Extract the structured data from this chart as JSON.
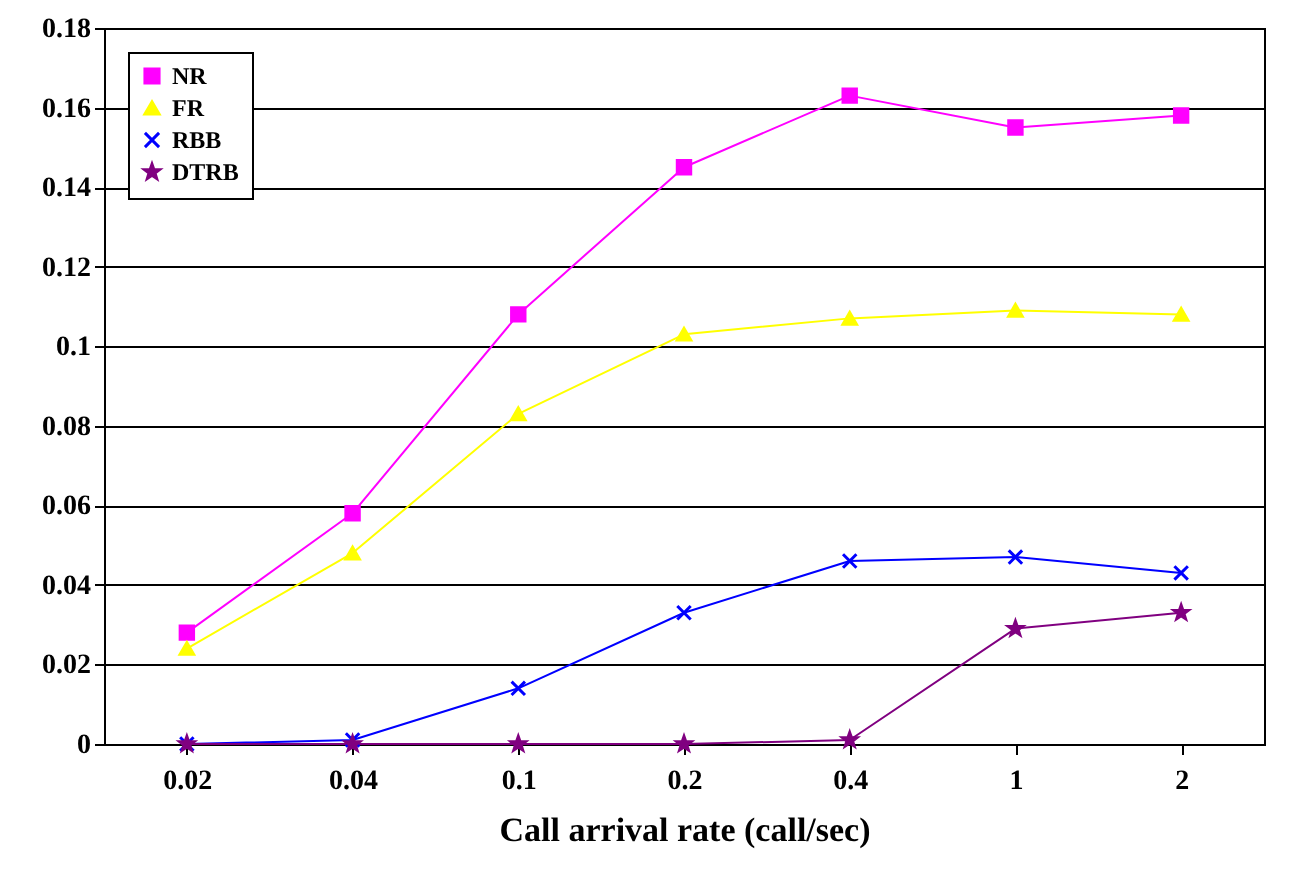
{
  "chart_data": {
    "type": "line",
    "xlabel": "Call arrival rate (call/sec)",
    "categories": [
      "0.02",
      "0.04",
      "0.1",
      "0.2",
      "0.4",
      "1",
      "2"
    ],
    "ylim": [
      0,
      0.18
    ],
    "yticks": [
      0,
      0.02,
      0.04,
      0.06,
      0.08,
      0.1,
      0.12,
      0.14,
      0.16,
      0.18
    ],
    "grid": "y",
    "legend": "top left",
    "series": [
      {
        "name": "NR",
        "color": "#ff00ff",
        "marker": "square",
        "values": [
          0.028,
          0.058,
          0.108,
          0.145,
          0.163,
          0.155,
          0.158
        ]
      },
      {
        "name": "FR",
        "color": "#ffff00",
        "marker": "triangle",
        "values": [
          0.024,
          0.048,
          0.083,
          0.103,
          0.107,
          0.109,
          0.108
        ]
      },
      {
        "name": "RBB",
        "color": "#0000ff",
        "marker": "cross",
        "values": [
          0,
          0.001,
          0.014,
          0.033,
          0.046,
          0.047,
          0.043
        ]
      },
      {
        "name": "DTRB",
        "color": "#800080",
        "marker": "star",
        "values": [
          0,
          0,
          0,
          0,
          0.001,
          0.029,
          0.033
        ]
      }
    ]
  }
}
